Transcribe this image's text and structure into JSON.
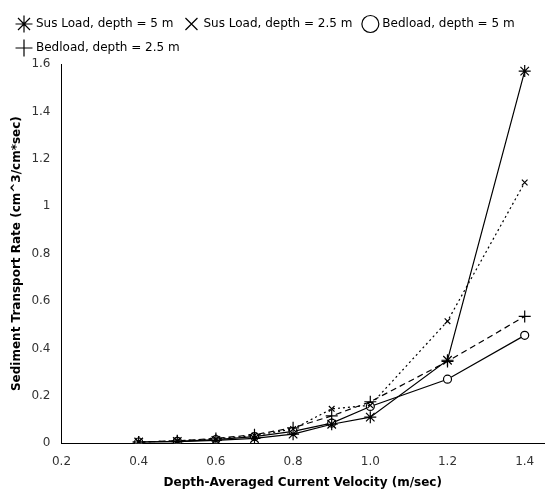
{
  "chart_data": {
    "type": "line",
    "xlabel": "Depth-Averaged Current Velocity (m/sec)",
    "ylabel": "Sediment Transport Rate (cm^3/cm*sec)",
    "x": [
      0.4,
      0.5,
      0.6,
      0.7,
      0.8,
      0.9,
      1.0,
      1.2,
      1.4
    ],
    "series": [
      {
        "name": "Sus Load, depth = 5 m",
        "color": "black",
        "marker": "star",
        "line_style": "solid",
        "values": [
          0.005,
          0.007,
          0.012,
          0.02,
          0.038,
          0.08,
          0.11,
          0.35,
          1.57
        ]
      },
      {
        "name": "Sus Load, depth = 2.5 m",
        "color": "black",
        "marker": "x",
        "line_style": "dotted",
        "values": [
          0.005,
          0.01,
          0.018,
          0.032,
          0.06,
          0.145,
          0.16,
          0.515,
          1.1
        ]
      },
      {
        "name": "Bedload, depth = 5 m",
        "color": "black",
        "marker": "circle",
        "line_style": "solid",
        "values": [
          0.005,
          0.008,
          0.015,
          0.028,
          0.05,
          0.085,
          0.155,
          0.27,
          0.455
        ]
      },
      {
        "name": "Bedload, depth = 2.5 m",
        "color": "black",
        "marker": "plus",
        "line_style": "dashed",
        "values": [
          0.005,
          0.01,
          0.02,
          0.036,
          0.065,
          0.115,
          0.175,
          0.345,
          0.535
        ]
      }
    ],
    "xlim": [
      0.2,
      1.45
    ],
    "xticks": [
      0.2,
      0.4,
      0.6,
      0.8,
      {
        "value": 1.0,
        "label": "1.0"
      },
      1.2,
      1.4
    ],
    "ylim": [
      0.0,
      1.6
    ],
    "yticks": [
      0,
      0.2,
      0.4,
      0.6,
      0.8,
      1,
      1.2,
      1.4,
      1.6
    ],
    "grid": false,
    "legend": "upper left"
  }
}
